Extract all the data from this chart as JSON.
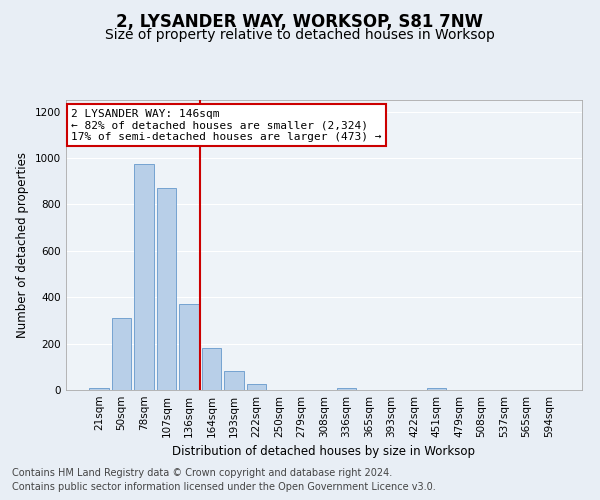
{
  "title": "2, LYSANDER WAY, WORKSOP, S81 7NW",
  "subtitle": "Size of property relative to detached houses in Worksop",
  "xlabel": "Distribution of detached houses by size in Worksop",
  "ylabel": "Number of detached properties",
  "footnote1": "Contains HM Land Registry data © Crown copyright and database right 2024.",
  "footnote2": "Contains public sector information licensed under the Open Government Licence v3.0.",
  "bar_labels": [
    "21sqm",
    "50sqm",
    "78sqm",
    "107sqm",
    "136sqm",
    "164sqm",
    "193sqm",
    "222sqm",
    "250sqm",
    "279sqm",
    "308sqm",
    "336sqm",
    "365sqm",
    "393sqm",
    "422sqm",
    "451sqm",
    "479sqm",
    "508sqm",
    "537sqm",
    "565sqm",
    "594sqm"
  ],
  "bar_values": [
    10,
    310,
    975,
    870,
    370,
    180,
    80,
    25,
    0,
    0,
    0,
    10,
    0,
    0,
    0,
    10,
    0,
    0,
    0,
    0,
    0
  ],
  "bar_color": "#b8cfe8",
  "bar_edge_color": "#6699cc",
  "ylim": [
    0,
    1250
  ],
  "yticks": [
    0,
    200,
    400,
    600,
    800,
    1000,
    1200
  ],
  "vline_x": 4.5,
  "vline_color": "#cc0000",
  "annotation_title": "2 LYSANDER WAY: 146sqm",
  "annotation_line1": "← 82% of detached houses are smaller (2,324)",
  "annotation_line2": "17% of semi-detached houses are larger (473) →",
  "annotation_box_color": "#ffffff",
  "annotation_box_edge_color": "#cc0000",
  "bg_color": "#e8eef5",
  "plot_bg_color": "#eef3f8",
  "grid_color": "#ffffff",
  "title_fontsize": 12,
  "subtitle_fontsize": 10,
  "axis_label_fontsize": 8.5,
  "tick_fontsize": 7.5,
  "annotation_fontsize": 8,
  "footnote_fontsize": 7
}
